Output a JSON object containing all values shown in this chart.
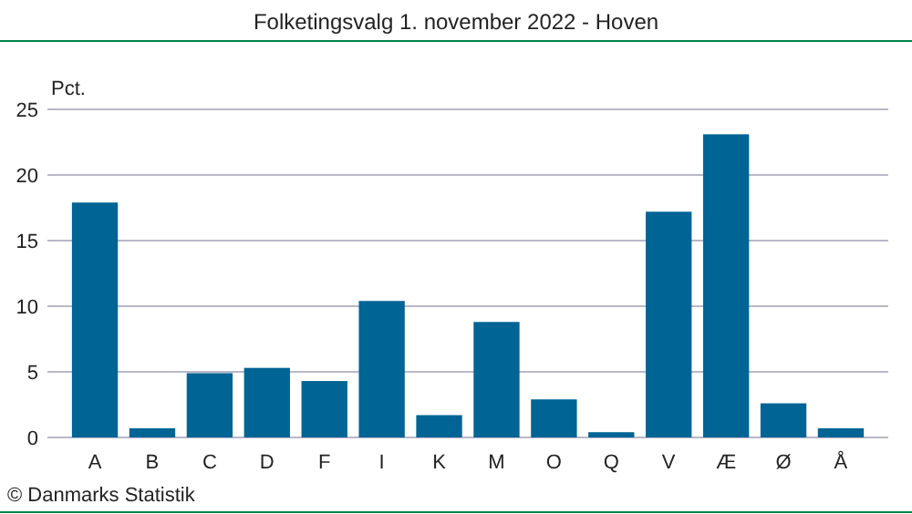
{
  "chart_data": {
    "type": "bar",
    "title": "Folketingsvalg 1. november 2022 - Hoven",
    "ylabel": "Pct.",
    "categories": [
      "A",
      "B",
      "C",
      "D",
      "F",
      "I",
      "K",
      "M",
      "O",
      "Q",
      "V",
      "Æ",
      "Ø",
      "Å"
    ],
    "values": [
      17.9,
      0.7,
      4.9,
      5.3,
      4.3,
      10.4,
      1.7,
      8.8,
      2.9,
      0.4,
      17.2,
      23.1,
      2.6,
      0.7
    ],
    "color": "#006495",
    "ylim": [
      0,
      25
    ],
    "yticks": [
      0,
      5,
      10,
      15,
      20,
      25
    ],
    "grid": "y",
    "annotations": [
      "© Danmarks Statistik"
    ]
  }
}
